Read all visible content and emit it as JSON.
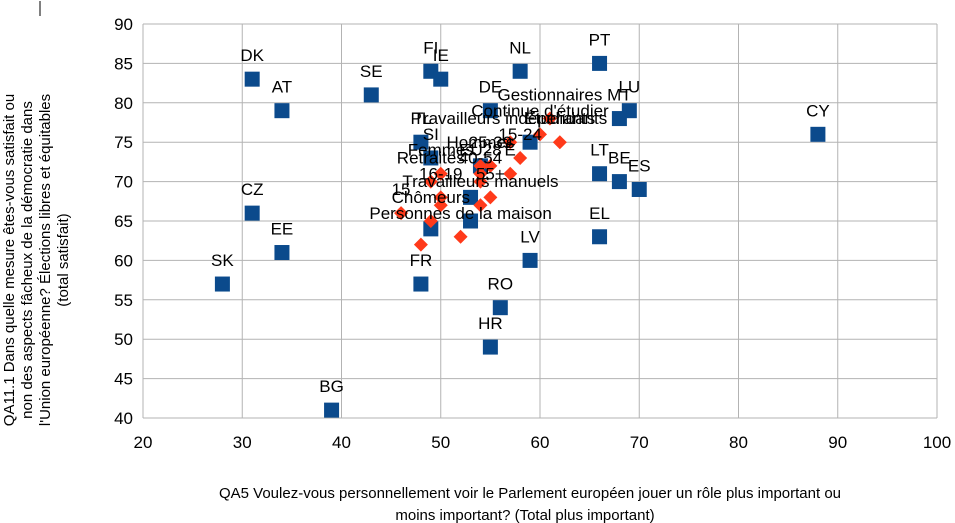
{
  "chart_data": {
    "type": "scatter",
    "xlabel_lines": [
      "QA5 Voulez-vous personnellement voir le Parlement européen jouer un rôle plus important ou",
      "moins important? (Total plus important)"
    ],
    "ylabel_lines": [
      "QA11.1 Dans quelle mesure êtes-vous satisfait ou",
      "non des aspects fâcheux de la démocratie dans",
      "l'Union européenne? Élections libres et équitables",
      "(total satisfait)"
    ],
    "xlim": [
      20,
      100
    ],
    "ylim": [
      40,
      90
    ],
    "xticks": [
      20,
      30,
      40,
      50,
      60,
      70,
      80,
      90,
      100
    ],
    "yticks": [
      40,
      45,
      50,
      55,
      60,
      65,
      70,
      75,
      80,
      85,
      90
    ],
    "grid": true,
    "series": [
      {
        "marker": "square",
        "color": "#0b4a8c",
        "points": [
          {
            "label": "DK",
            "x": 31,
            "y": 83
          },
          {
            "label": "AT",
            "x": 34,
            "y": 79
          },
          {
            "label": "SE",
            "x": 43,
            "y": 81
          },
          {
            "label": "FI",
            "x": 49,
            "y": 84
          },
          {
            "label": "IE",
            "x": 50,
            "y": 83
          },
          {
            "label": "NL",
            "x": 58,
            "y": 84
          },
          {
            "label": "PT",
            "x": 66,
            "y": 85
          },
          {
            "label": "DE",
            "x": 55,
            "y": 79
          },
          {
            "label": "LU",
            "x": 69,
            "y": 79
          },
          {
            "label": "MT",
            "x": 68,
            "y": 78
          },
          {
            "label": "CY",
            "x": 88,
            "y": 76
          },
          {
            "label": "PL",
            "x": 48,
            "y": 75
          },
          {
            "label": "SI",
            "x": 49,
            "y": 73
          },
          {
            "label": "LT",
            "x": 66,
            "y": 71
          },
          {
            "label": "BE",
            "x": 68,
            "y": 70
          },
          {
            "label": "ES",
            "x": 70,
            "y": 69
          },
          {
            "label": "CZ",
            "x": 31,
            "y": 66
          },
          {
            "label": "EE",
            "x": 34,
            "y": 61
          },
          {
            "label": "EL",
            "x": 66,
            "y": 63
          },
          {
            "label": "LV",
            "x": 59,
            "y": 60
          },
          {
            "label": "SK",
            "x": 28,
            "y": 57
          },
          {
            "label": "FR",
            "x": 48,
            "y": 57
          },
          {
            "label": "RO",
            "x": 56,
            "y": 54
          },
          {
            "label": "HR",
            "x": 55,
            "y": 49
          },
          {
            "label": "BG",
            "x": 39,
            "y": 41
          },
          {
            "label": "",
            "x": 59,
            "y": 75
          },
          {
            "label": "",
            "x": 54,
            "y": 72
          },
          {
            "label": "",
            "x": 53,
            "y": 68
          },
          {
            "label": "",
            "x": 49,
            "y": 64
          },
          {
            "label": "",
            "x": 53,
            "y": 65
          }
        ]
      },
      {
        "marker": "diamond",
        "color": "#ff3a1a",
        "points": [
          {
            "label": "Gestionnaires",
            "x": 61,
            "y": 78
          },
          {
            "label": "Étudiants",
            "x": 62,
            "y": 75
          },
          {
            "label": "Continue d'étudier",
            "x": 60,
            "y": 76
          },
          {
            "label": "Travailleurs indépendants",
            "x": 57,
            "y": 75
          },
          {
            "label": "15-24",
            "x": 58,
            "y": 73
          },
          {
            "label": "25-39",
            "x": 55,
            "y": 72
          },
          {
            "label": "Hommes",
            "x": 54,
            "y": 72
          },
          {
            "label": "EU28",
            "x": 54,
            "y": 71
          },
          {
            "label": "Retraités",
            "x": 49,
            "y": 70
          },
          {
            "label": "Femmes",
            "x": 50,
            "y": 71
          },
          {
            "label": "E",
            "x": 57,
            "y": 71
          },
          {
            "label": "40-54",
            "x": 54,
            "y": 70
          },
          {
            "label": "16-19",
            "x": 50,
            "y": 68
          },
          {
            "label": "55+",
            "x": 55,
            "y": 68
          },
          {
            "label": "Travailleurs manuels",
            "x": 54,
            "y": 67
          },
          {
            "label": "Chômeurs",
            "x": 49,
            "y": 65
          },
          {
            "label": "15",
            "x": 46,
            "y": 66
          },
          {
            "label": "Personnes de la maison",
            "x": 52,
            "y": 63
          },
          {
            "label": "",
            "x": 48,
            "y": 62
          },
          {
            "label": "",
            "x": 50,
            "y": 67
          }
        ]
      }
    ]
  }
}
